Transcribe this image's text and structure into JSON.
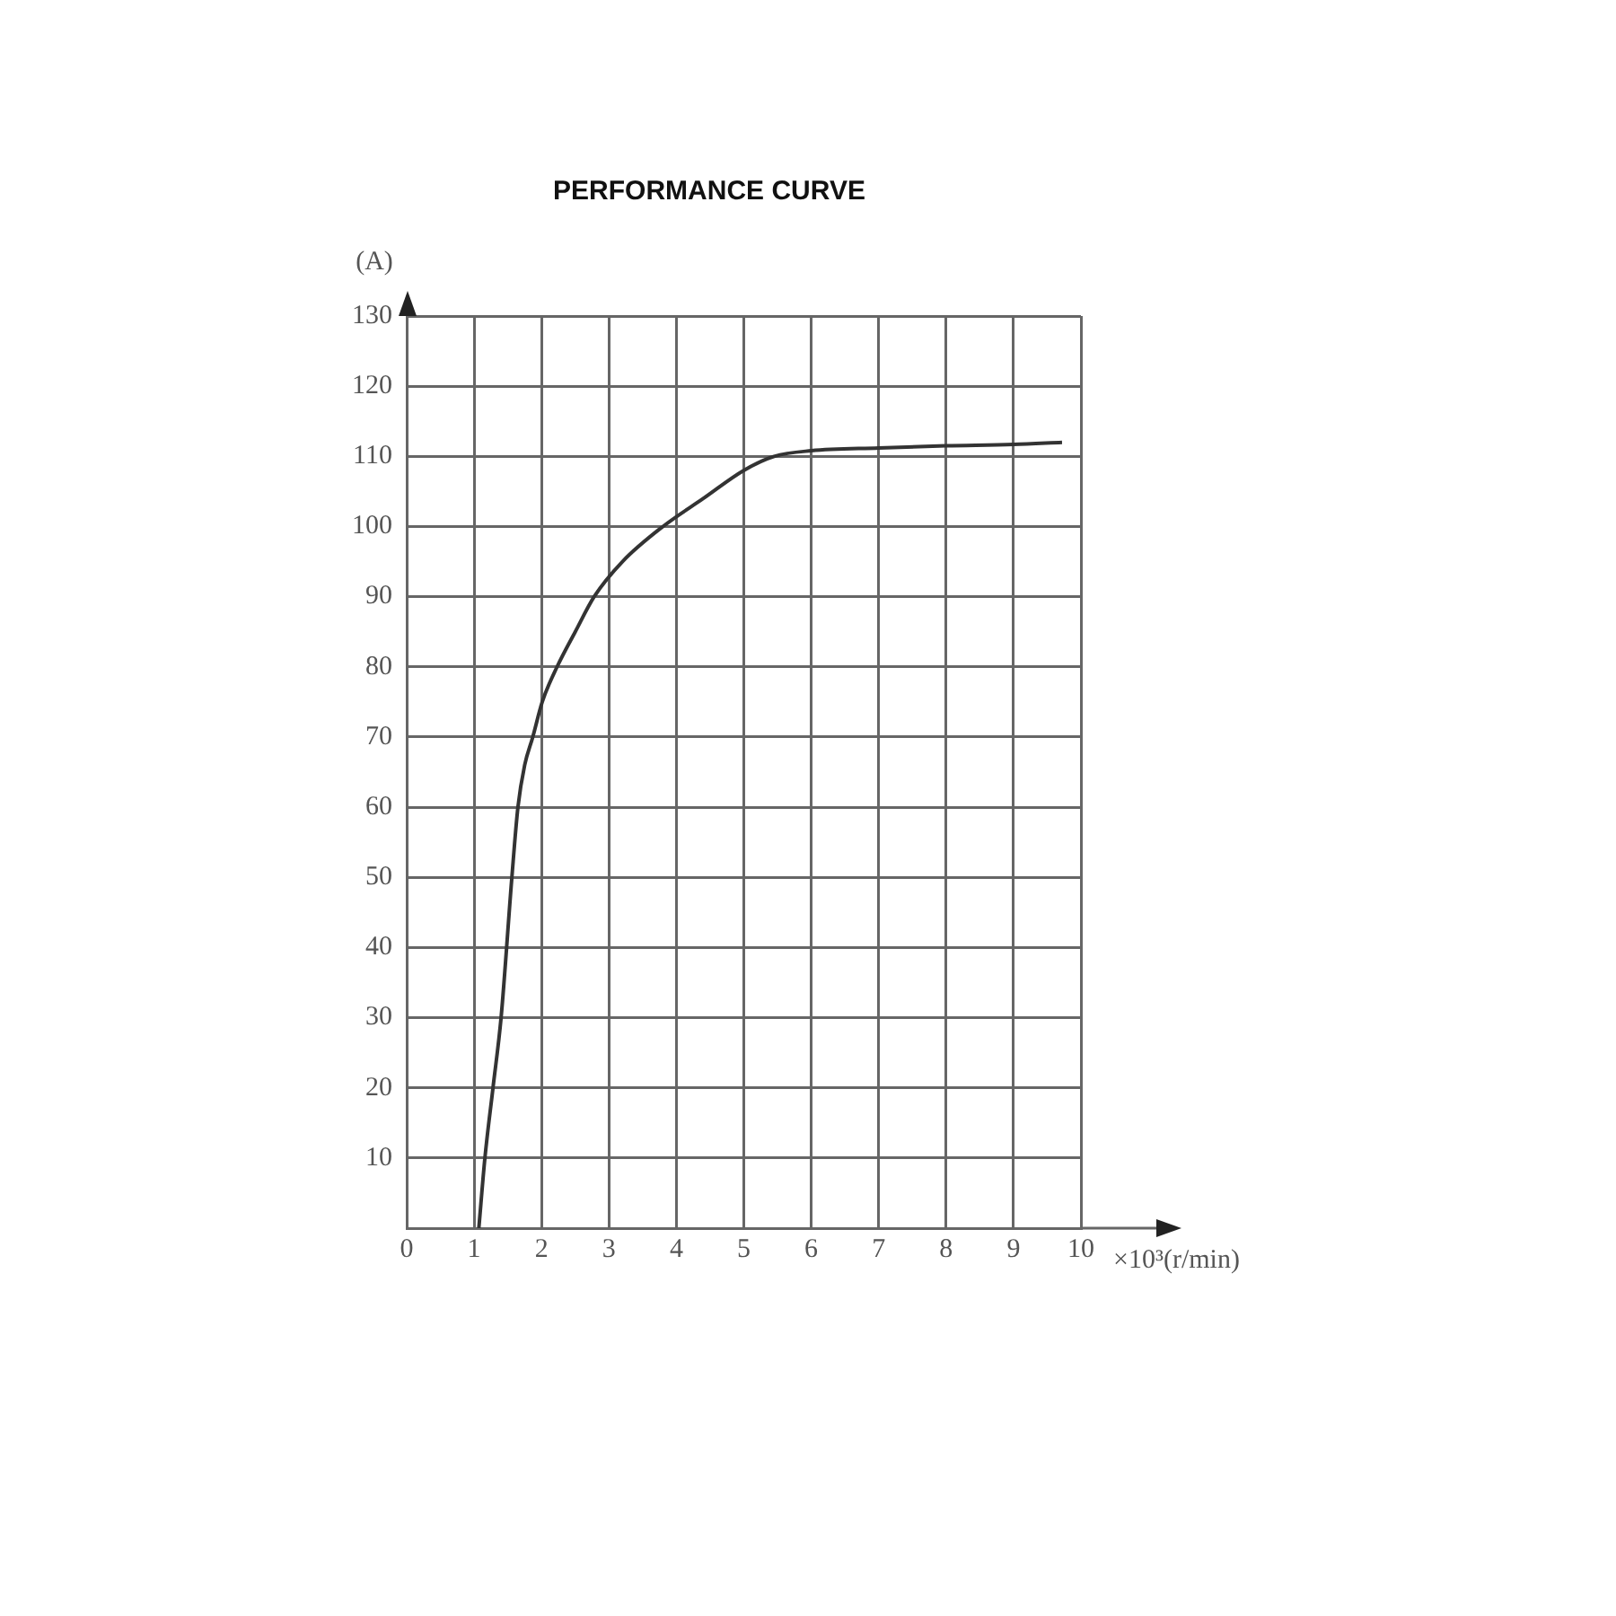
{
  "chart_data": {
    "type": "line",
    "title": "PERFORMANCE CURVE",
    "xlabel": "×10³(r/min)",
    "ylabel": "(A)",
    "series": [
      {
        "color": "#333333",
        "x": [
          1.07,
          1.16,
          1.28,
          1.4,
          1.56,
          1.65,
          1.75,
          1.87,
          2.01,
          2.23,
          2.5,
          2.78,
          3.2,
          3.8,
          4.4,
          5.0,
          5.45,
          6.0,
          7.0,
          8.0,
          9.0,
          9.72
        ],
        "values": [
          0,
          10,
          20,
          30,
          50,
          60,
          66,
          70,
          75,
          80,
          85,
          90,
          95,
          100,
          104,
          108,
          110,
          110.8,
          111.2,
          111.5,
          111.7,
          112
        ]
      }
    ],
    "xlim": [
      0,
      10
    ],
    "xticks": [
      0,
      1,
      2,
      3,
      4,
      5,
      6,
      7,
      8,
      9,
      10
    ],
    "ylim": [
      0,
      130
    ],
    "yticks": [
      {
        "value": 0,
        "label": null
      },
      10,
      20,
      30,
      40,
      50,
      60,
      70,
      80,
      90,
      100,
      110,
      120,
      130
    ],
    "grid": true,
    "legend": false,
    "marker": "none",
    "line_style": "solid"
  }
}
